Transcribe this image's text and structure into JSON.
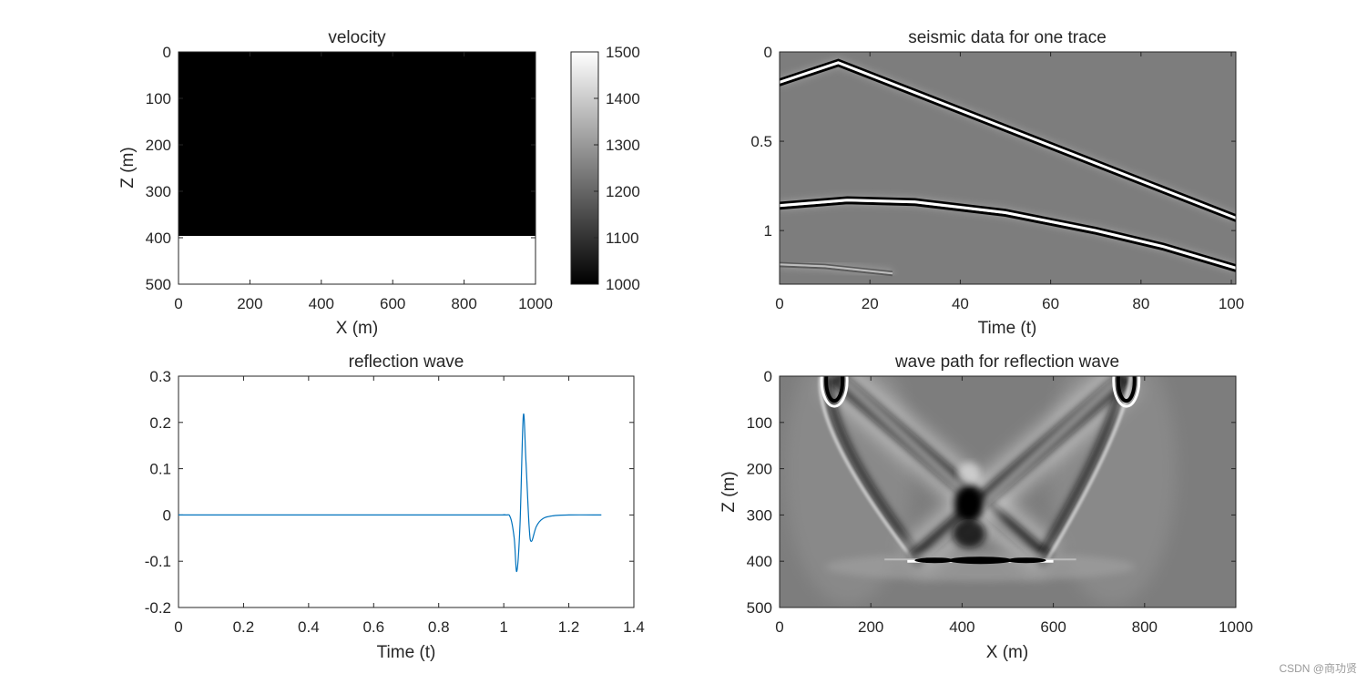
{
  "watermark": "CSDN @商功贤",
  "colors": {
    "line": "#0072BD",
    "axis": "#262626",
    "panel_gray": "#7d7d7d"
  },
  "chart_data": [
    {
      "type": "heatmap",
      "title": "velocity",
      "xlabel": "X (m)",
      "ylabel": "Z (m)",
      "xlim": [
        0,
        1000
      ],
      "ylim": [
        0,
        500
      ],
      "y_reversed": true,
      "xticks": [
        "0",
        "200",
        "400",
        "600",
        "800",
        "1000"
      ],
      "yticks": [
        "0",
        "100",
        "200",
        "300",
        "400",
        "500"
      ],
      "layers": [
        {
          "z_from": 0,
          "z_to": 400,
          "velocity": 1000
        },
        {
          "z_from": 400,
          "z_to": 500,
          "velocity": 1500
        }
      ],
      "colorbar": {
        "min": 1000,
        "max": 1500,
        "ticks": [
          "1500",
          "1400",
          "1300",
          "1200",
          "1100",
          "1000"
        ],
        "colormap": "gray"
      }
    },
    {
      "type": "heatmap",
      "title": "seismic data for one trace",
      "xlabel": "Time (t)",
      "ylabel": "",
      "xlim": [
        0,
        101
      ],
      "ylim": [
        0,
        1.3
      ],
      "y_reversed": true,
      "xticks": [
        "0",
        "20",
        "40",
        "60",
        "80",
        "100"
      ],
      "yticks": [
        "0",
        "0.5",
        "1"
      ],
      "events": [
        {
          "name": "direct-wave",
          "points": [
            [
              0,
              0.17
            ],
            [
              13,
              0.06
            ],
            [
              101,
              0.93
            ]
          ]
        },
        {
          "name": "reflection",
          "points": [
            [
              0,
              0.86
            ],
            [
              15,
              0.83
            ],
            [
              30,
              0.84
            ],
            [
              50,
              0.9
            ],
            [
              70,
              1.0
            ],
            [
              85,
              1.09
            ],
            [
              101,
              1.21
            ]
          ]
        },
        {
          "name": "multiple",
          "points": [
            [
              0,
              1.19
            ],
            [
              10,
              1.2
            ],
            [
              25,
              1.24
            ]
          ]
        }
      ]
    },
    {
      "type": "line",
      "title": "reflection wave",
      "xlabel": "Time (t)",
      "ylabel": "",
      "xlim": [
        0,
        1.4
      ],
      "ylim": [
        -0.2,
        0.3
      ],
      "xticks": [
        "0",
        "0.2",
        "0.4",
        "0.6",
        "0.8",
        "1",
        "1.2",
        "1.4"
      ],
      "yticks": [
        "0.3",
        "0.2",
        "0.1",
        "0",
        "-0.1",
        "-0.2"
      ],
      "series": [
        {
          "x": [
            0,
            0.9,
            1.0,
            1.02,
            1.032,
            1.04,
            1.05,
            1.06,
            1.068,
            1.078,
            1.085,
            1.1,
            1.12,
            1.15,
            1.2,
            1.3
          ],
          "y": [
            0,
            0,
            0,
            -0.005,
            -0.05,
            -0.122,
            -0.02,
            0.214,
            0.12,
            -0.025,
            -0.057,
            -0.025,
            -0.008,
            -0.002,
            0,
            0
          ]
        }
      ]
    },
    {
      "type": "heatmap",
      "title": "wave path for reflection wave",
      "xlabel": "X (m)",
      "ylabel": "Z (m)",
      "xlim": [
        0,
        1000
      ],
      "ylim": [
        0,
        500
      ],
      "y_reversed": true,
      "xticks": [
        "0",
        "200",
        "400",
        "600",
        "800",
        "1000"
      ],
      "yticks": [
        "0",
        "100",
        "200",
        "300",
        "400",
        "500"
      ],
      "source_x": 120,
      "receiver_x": 760,
      "reflector_z": 400
    }
  ]
}
